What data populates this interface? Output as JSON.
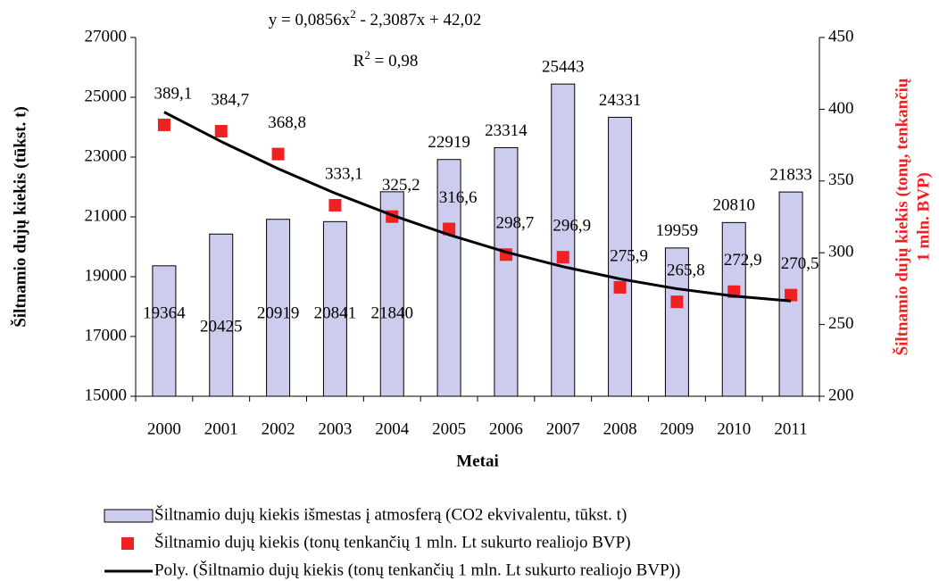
{
  "chart_data": {
    "type": "bar",
    "equation": [
      "y = 0,0856x",
      "2",
      " - 2,3087x + 42,02"
    ],
    "r_squared": [
      "R",
      "2",
      " = 0,98"
    ],
    "x_label": "Metai",
    "y_label": "Šiltnamio dujų kiekis (tūkst. t)",
    "y2_label": [
      "Šiltnamio dujų kiekis (tonų, tenkančių",
      "1 mln. BVP)"
    ],
    "categories": [
      "2000",
      "2001",
      "2002",
      "2003",
      "2004",
      "2005",
      "2006",
      "2007",
      "2008",
      "2009",
      "2010",
      "2011"
    ],
    "ylim": [
      15000,
      27000
    ],
    "yticks": [
      15000,
      17000,
      19000,
      21000,
      23000,
      25000,
      27000
    ],
    "y2lim": [
      200,
      450
    ],
    "y2ticks": [
      200,
      250,
      300,
      350,
      400,
      450
    ],
    "series": [
      {
        "name": "Šiltnamio dujų kiekis išmestas į atmosferą (CO2 ekvivalentu, tūkst. t)",
        "type": "bar",
        "color": "#ccccee",
        "values": [
          19364,
          20425,
          20919,
          20841,
          21840,
          22919,
          23314,
          25443,
          24331,
          19959,
          20810,
          21833
        ]
      },
      {
        "name": "Šiltnamio dujų kiekis (tonų tenkančių 1 mln. Lt sukurto realiojo BVP)",
        "type": "scatter",
        "axis": "y2",
        "color": "#ee2222",
        "values": [
          389.1,
          384.7,
          368.8,
          333.1,
          325.2,
          316.6,
          298.7,
          296.9,
          275.9,
          265.8,
          272.9,
          270.5
        ],
        "value_labels": [
          "389,1",
          "384,7",
          "368,8",
          "333,1",
          "325,2",
          "316,6",
          "298,7",
          "296,9",
          "275,9",
          "265,8",
          "272,9",
          "270,5"
        ]
      },
      {
        "name": "Poly. (Šiltnamio dujų kiekis (tonų tenkančių 1 mln. Lt sukurto realiojo BVP))",
        "type": "line",
        "axis": "y2",
        "color": "#000000",
        "values": [
          398.0,
          377.5,
          358.6,
          341.5,
          326.2,
          312.5,
          300.5,
          290.3,
          281.8,
          274.9,
          269.8,
          266.4
        ]
      }
    ]
  }
}
